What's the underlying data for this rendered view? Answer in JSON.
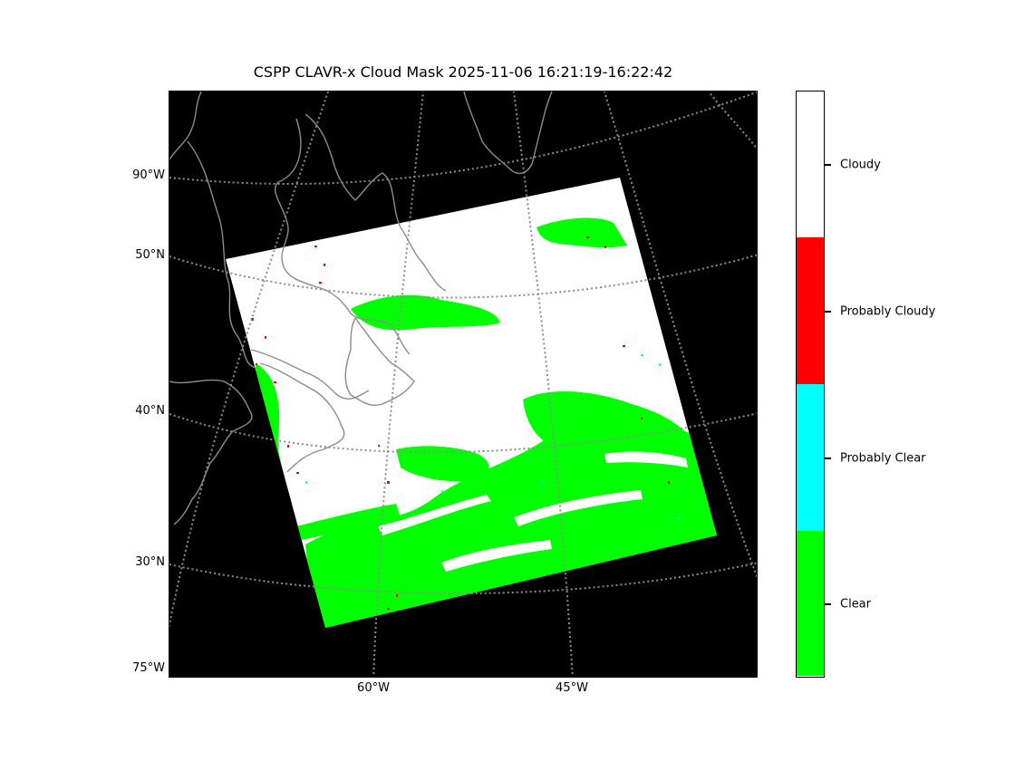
{
  "title": "CSPP CLAVR-x Cloud Mask 2025-11-06 16:21:19-16:22:42",
  "map": {
    "background": "#000000",
    "coastline_color": "#8c8c8c",
    "graticule_color": "#8c8c8c",
    "lat_labels": [
      "90°W",
      "50°N",
      "40°N",
      "30°N",
      "75°W"
    ],
    "lon_labels": [
      "60°W",
      "45°W"
    ]
  },
  "legend": {
    "entries": [
      {
        "label": "Cloudy",
        "color": "#ffffff"
      },
      {
        "label": "Probably Cloudy",
        "color": "#ff0000"
      },
      {
        "label": "Probably Clear",
        "color": "#00ffff"
      },
      {
        "label": "Clear",
        "color": "#00ff00"
      }
    ]
  }
}
